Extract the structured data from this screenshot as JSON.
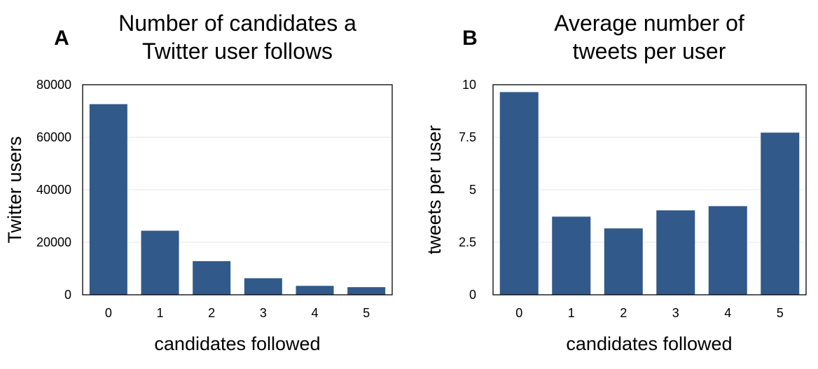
{
  "chart_data": [
    {
      "type": "bar",
      "panel_label": "A",
      "title": "Number of candidates a Twitter user follows",
      "title_lines": [
        "Number of candidates a",
        "Twitter user follows"
      ],
      "xlabel": "candidates followed",
      "ylabel": "Twitter users",
      "categories": [
        "0",
        "1",
        "2",
        "3",
        "4",
        "5"
      ],
      "values": [
        72600,
        24400,
        12800,
        6300,
        3400,
        2900
      ],
      "ylim": [
        0,
        80000
      ],
      "yticks": [
        0,
        20000,
        40000,
        60000,
        80000
      ],
      "ytick_labels": [
        "0",
        "20000",
        "40000",
        "60000",
        "80000"
      ],
      "bar_color": "#31598a",
      "grid": true
    },
    {
      "type": "bar",
      "panel_label": "B",
      "title": "Average number of tweets per user",
      "title_lines": [
        "Average number of",
        "tweets per user"
      ],
      "xlabel": "candidates followed",
      "ylabel": "tweets per user",
      "categories": [
        "0",
        "1",
        "2",
        "3",
        "4",
        "5"
      ],
      "values": [
        9.65,
        3.72,
        3.16,
        4.02,
        4.22,
        7.72
      ],
      "ylim": [
        0,
        10
      ],
      "yticks": [
        0,
        2.5,
        5,
        7.5,
        10
      ],
      "ytick_labels": [
        "0",
        "2.5",
        "5",
        "7.5",
        "10"
      ],
      "bar_color": "#31598a",
      "grid": true
    }
  ]
}
